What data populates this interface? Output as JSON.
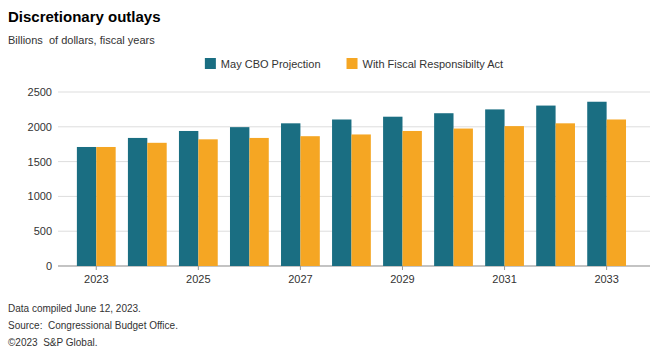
{
  "chart_data": {
    "type": "bar",
    "title": "Discretionary outlays",
    "subtitle": "Billions  of dollars, fiscal years",
    "x": [
      2023,
      2024,
      2025,
      2026,
      2027,
      2028,
      2029,
      2030,
      2031,
      2032,
      2033
    ],
    "series": [
      {
        "name": "May CBO Projection",
        "color": "#1a6e82",
        "values": [
          1710,
          1840,
          1940,
          1995,
          2050,
          2105,
          2145,
          2195,
          2250,
          2305,
          2360
        ]
      },
      {
        "name": "With Fiscal Responsibilty Act",
        "color": "#f5a623",
        "values": [
          1710,
          1770,
          1820,
          1840,
          1865,
          1890,
          1940,
          1975,
          2010,
          2050,
          2105
        ]
      }
    ],
    "xlim": [
      2022.25,
      2033.85
    ],
    "xticks": [
      2023,
      2025,
      2027,
      2029,
      2031,
      2033
    ],
    "ylim": [
      0,
      2500
    ],
    "yticks": [
      0,
      500,
      1000,
      1500,
      2000,
      2500
    ],
    "grid": true,
    "legend": "top",
    "annotations": [
      "Data compiled June 12, 2023.",
      "Source:  Congressional Budget Office.",
      "©2023  S&P Global."
    ]
  }
}
